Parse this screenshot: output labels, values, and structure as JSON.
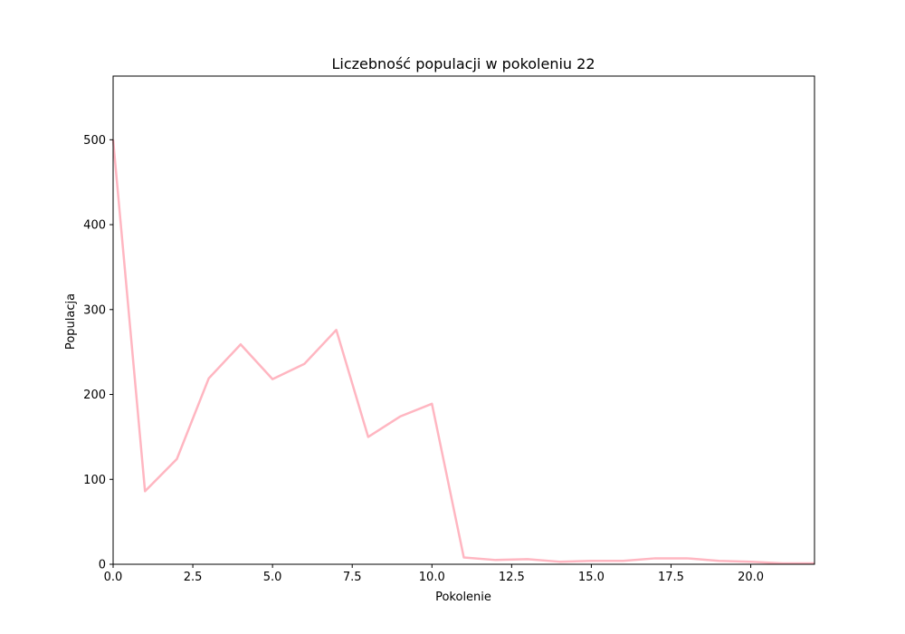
{
  "chart_data": {
    "type": "line",
    "title": "Liczebność populacji w pokoleniu 22",
    "xlabel": "Pokolenie",
    "ylabel": "Populacja",
    "xlim": [
      0,
      22
    ],
    "ylim": [
      0,
      575
    ],
    "x_ticks": [
      "0.0",
      "2.5",
      "5.0",
      "7.5",
      "10.0",
      "12.5",
      "15.0",
      "17.5",
      "20.0"
    ],
    "y_ticks": [
      "0",
      "100",
      "200",
      "300",
      "400",
      "500"
    ],
    "grid": false,
    "series": [
      {
        "color": "#ffb6c1",
        "x": [
          0,
          1,
          2,
          3,
          4,
          5,
          6,
          7,
          8,
          9,
          10,
          11,
          12,
          13,
          14,
          15,
          16,
          17,
          18,
          19,
          20,
          21,
          22
        ],
        "y": [
          500,
          86,
          124,
          219,
          259,
          218,
          236,
          276,
          150,
          174,
          189,
          8,
          5,
          6,
          3,
          4,
          4,
          7,
          7,
          4,
          3,
          1,
          1
        ]
      }
    ]
  }
}
